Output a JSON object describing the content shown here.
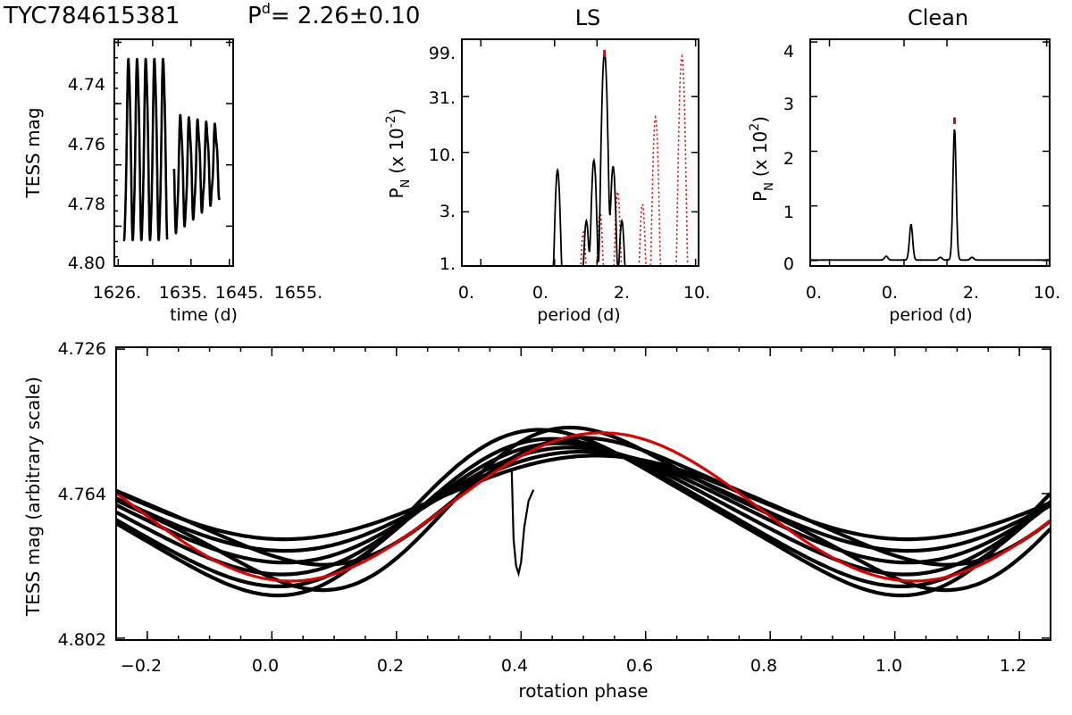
{
  "header": {
    "star": "TYC784615381",
    "p_label": "P",
    "p_sup": "d",
    "p_rest": "= 2.26±0.10"
  },
  "colors": {
    "model": "#e00000",
    "data": "#000000",
    "alias": "#e00000"
  },
  "chart_data": [
    {
      "id": "light-curve",
      "type": "scatter",
      "title": "",
      "xlabel": "time (d)",
      "ylabel": "TESS mag",
      "xlim": [
        1625,
        1656
      ],
      "ylim": [
        4.801,
        4.727
      ],
      "xticks": [
        1626,
        1635,
        1645,
        1655
      ],
      "xtick_labels": [
        "1626.",
        "1635.",
        "1645.",
        "1655."
      ],
      "yticks": [
        4.74,
        4.76,
        4.78,
        4.8
      ],
      "ytick_labels": [
        "4.74",
        "4.76",
        "4.78",
        "4.80"
      ],
      "segments": [
        {
          "t_start": 1627.5,
          "t_end": 1638.8
        },
        {
          "t_start": 1640.6,
          "t_end": 1652.4
        }
      ],
      "period_d": 2.26
    },
    {
      "id": "ls-periodogram",
      "type": "line",
      "title": "LS",
      "xlabel": "period (d)",
      "ylabel": "P",
      "ylabel_sub": "N",
      "ylabel_rest": "(x 10",
      "ylabel_sup": "-2",
      "ylabel_close": ")",
      "yscale": "log",
      "ylim": [
        1,
        99
      ],
      "yticks": [
        1,
        3,
        10,
        31,
        99
      ],
      "ytick_labels": [
        "1.",
        "3.",
        "10.",
        "31.",
        "99."
      ],
      "xtick_labels": [
        "0.",
        "0.",
        "2.",
        "10."
      ],
      "series": [
        {
          "name": "LS power",
          "style": "solid",
          "peaks": [
            {
              "period": 1.05,
              "value": 6.5
            },
            {
              "period": 1.68,
              "value": 2.0
            },
            {
              "period": 1.9,
              "value": 8.0
            },
            {
              "period": 2.26,
              "value": 75
            },
            {
              "period": 2.6,
              "value": 7.0
            },
            {
              "period": 3.0,
              "value": 2.0
            }
          ]
        },
        {
          "name": "spectral window",
          "style": "dotted",
          "peaks": [
            {
              "period": 1.6,
              "value": 1.5
            },
            {
              "period": 2.1,
              "value": 2.5
            },
            {
              "period": 2.8,
              "value": 4.0
            },
            {
              "period": 4.2,
              "value": 3.0
            },
            {
              "period": 5.2,
              "value": 20
            },
            {
              "period": 8.0,
              "value": 70
            }
          ]
        }
      ],
      "marker_period": 2.26
    },
    {
      "id": "clean-periodogram",
      "type": "line",
      "title": "Clean",
      "xlabel": "period (d)",
      "ylabel": "P",
      "ylabel_sub": "N",
      "ylabel_rest": "(x 10",
      "ylabel_sup": "2",
      "ylabel_close": ")",
      "ylim": [
        -0.1,
        4.05
      ],
      "yticks": [
        0,
        1,
        2,
        3,
        4
      ],
      "ytick_labels": [
        "0",
        "1",
        "2",
        "3",
        "4"
      ],
      "xtick_labels": [
        "0.",
        "0.",
        "2.",
        "10."
      ],
      "series": [
        {
          "name": "Clean power",
          "style": "solid",
          "peaks": [
            {
              "period": 0.75,
              "value": 0.07
            },
            {
              "period": 1.12,
              "value": 0.65
            },
            {
              "period": 1.8,
              "value": 0.05
            },
            {
              "period": 2.26,
              "value": 2.4
            },
            {
              "period": 3.0,
              "value": 0.05
            }
          ]
        }
      ],
      "marker_period": 2.26
    },
    {
      "id": "phased-curve",
      "type": "scatter",
      "title": "",
      "xlabel": "rotation phase",
      "ylabel": "TESS mag (arbitrary scale)",
      "xlim": [
        -0.25,
        1.25
      ],
      "ylim": [
        4.8025,
        4.7255
      ],
      "xticks": [
        -0.2,
        0.0,
        0.2,
        0.4,
        0.6,
        0.8,
        1.0,
        1.2
      ],
      "xtick_labels": [
        "−0.2",
        "0.0",
        "0.2",
        "0.4",
        "0.6",
        "0.8",
        "1.0",
        "1.2"
      ],
      "yticks": [
        4.726,
        4.764,
        4.802
      ],
      "ytick_labels": [
        "4.726",
        "4.764",
        "4.802"
      ],
      "model": {
        "name": "sinusoid fit",
        "mean": 4.7605,
        "amplitude": 0.0195,
        "phase_of_max": 0.03
      }
    }
  ]
}
